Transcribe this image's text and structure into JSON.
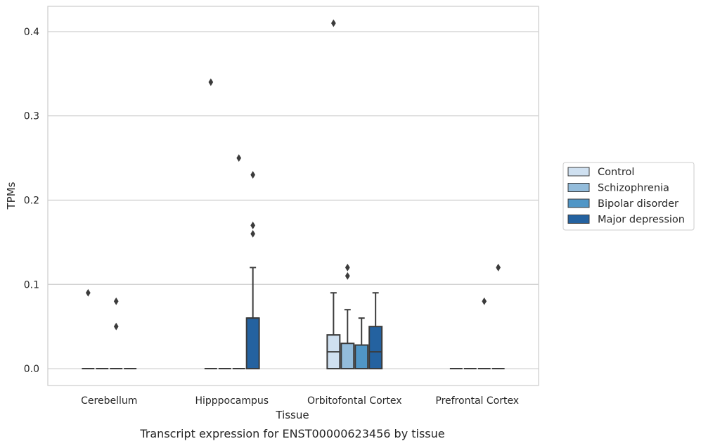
{
  "chart_data": {
    "type": "box",
    "title": "",
    "caption": "Transcript expression for ENST00000623456 by tissue",
    "xlabel": "Tissue",
    "ylabel": "TPMs",
    "ylim": [
      -0.02,
      0.43
    ],
    "yticks": [
      0.0,
      0.1,
      0.2,
      0.3,
      0.4
    ],
    "ytick_labels": [
      "0.0",
      "0.1",
      "0.2",
      "0.3",
      "0.4"
    ],
    "grid": "horizontal",
    "legend_position": "right",
    "categories": [
      "Cerebellum",
      "Hipppocampus",
      "Orbitofontal Cortex",
      "Prefrontal Cortex"
    ],
    "series": [
      {
        "name": "Control",
        "color": "#cfe0f0",
        "boxes": [
          {
            "q1": 0,
            "median": 0,
            "q3": 0,
            "whislo": 0,
            "whishi": 0,
            "fliers": [
              0.09
            ]
          },
          {
            "q1": 0,
            "median": 0,
            "q3": 0,
            "whislo": 0,
            "whishi": 0,
            "fliers": [
              0.34
            ]
          },
          {
            "q1": 0,
            "median": 0.02,
            "q3": 0.04,
            "whislo": 0,
            "whishi": 0.09,
            "fliers": [
              0.41
            ]
          },
          {
            "q1": 0,
            "median": 0,
            "q3": 0,
            "whislo": 0,
            "whishi": 0,
            "fliers": []
          }
        ]
      },
      {
        "name": "Schizophrenia",
        "color": "#93bcdb",
        "boxes": [
          {
            "q1": 0,
            "median": 0,
            "q3": 0,
            "whislo": 0,
            "whishi": 0,
            "fliers": []
          },
          {
            "q1": 0,
            "median": 0,
            "q3": 0,
            "whislo": 0,
            "whishi": 0,
            "fliers": []
          },
          {
            "q1": 0,
            "median": 0.03,
            "q3": 0.03,
            "whislo": 0,
            "whishi": 0.07,
            "fliers": [
              0.11,
              0.12
            ]
          },
          {
            "q1": 0,
            "median": 0,
            "q3": 0,
            "whislo": 0,
            "whishi": 0,
            "fliers": []
          }
        ]
      },
      {
        "name": "Bipolar disorder",
        "color": "#5096c6",
        "boxes": [
          {
            "q1": 0,
            "median": 0,
            "q3": 0,
            "whislo": 0,
            "whishi": 0,
            "fliers": [
              0.05,
              0.08
            ]
          },
          {
            "q1": 0,
            "median": 0,
            "q3": 0,
            "whislo": 0,
            "whishi": 0,
            "fliers": [
              0.25
            ]
          },
          {
            "q1": 0,
            "median": 0.028,
            "q3": 0.028,
            "whislo": 0,
            "whishi": 0.06,
            "fliers": []
          },
          {
            "q1": 0,
            "median": 0,
            "q3": 0,
            "whislo": 0,
            "whishi": 0,
            "fliers": [
              0.08
            ]
          }
        ]
      },
      {
        "name": "Major depression",
        "color": "#2462a0",
        "boxes": [
          {
            "q1": 0,
            "median": 0,
            "q3": 0,
            "whislo": 0,
            "whishi": 0,
            "fliers": []
          },
          {
            "q1": 0,
            "median": 0.06,
            "q3": 0.06,
            "whislo": 0,
            "whishi": 0.12,
            "fliers": [
              0.16,
              0.17,
              0.23
            ]
          },
          {
            "q1": 0,
            "median": 0.02,
            "q3": 0.05,
            "whislo": 0,
            "whishi": 0.09,
            "fliers": []
          },
          {
            "q1": 0,
            "median": 0,
            "q3": 0,
            "whislo": 0,
            "whishi": 0,
            "fliers": [
              0.12
            ]
          }
        ]
      }
    ]
  }
}
